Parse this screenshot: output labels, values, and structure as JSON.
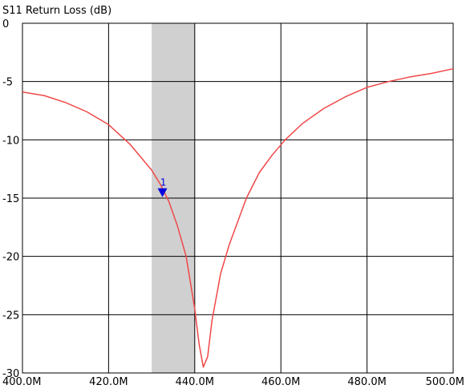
{
  "chart_data": {
    "type": "line",
    "title": "S11 Return Loss (dB)",
    "xlabel": "",
    "ylabel": "",
    "xlim": [
      400,
      500
    ],
    "ylim": [
      -30,
      0
    ],
    "x_ticks": [
      400,
      420,
      440,
      460,
      480,
      500
    ],
    "x_tick_labels": [
      "400.0M",
      "420.0M",
      "440.0M",
      "460.0M",
      "480.0M",
      "500.0M"
    ],
    "y_ticks": [
      0,
      -5,
      -10,
      -15,
      -20,
      -25,
      -30
    ],
    "y_tick_labels": [
      "0",
      "-5",
      "-10",
      "-15",
      "-20",
      "-25",
      "-30"
    ],
    "grid": true,
    "highlight_band": {
      "x_start": 430,
      "x_end": 440,
      "color": "#d0d0d0"
    },
    "series": [
      {
        "color": "#f04848",
        "x": [
          400,
          405,
          410,
          415,
          420,
          425,
          430,
          432,
          434,
          436,
          438,
          440,
          441,
          442,
          443,
          444,
          446,
          448,
          450,
          452,
          455,
          458,
          461,
          465,
          470,
          475,
          480,
          485,
          490,
          495,
          500
        ],
        "y": [
          -5.9,
          -6.2,
          -6.8,
          -7.6,
          -8.7,
          -10.4,
          -12.6,
          -13.8,
          -15.3,
          -17.4,
          -20.0,
          -24.5,
          -27.5,
          -29.5,
          -28.6,
          -25.5,
          -21.5,
          -19.0,
          -17.0,
          -15.0,
          -12.8,
          -11.3,
          -10.0,
          -8.6,
          -7.3,
          -6.3,
          -5.5,
          -5.0,
          -4.6,
          -4.3,
          -3.9
        ]
      }
    ],
    "markers": [
      {
        "label": "1",
        "x": 432.5,
        "y": -14.5,
        "color": "#0000dd"
      }
    ]
  }
}
